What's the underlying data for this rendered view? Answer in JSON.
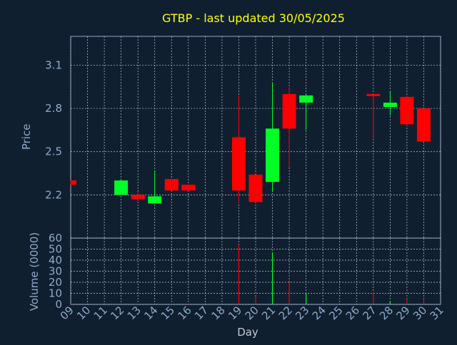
{
  "chart_data": [
    {
      "type": "candlestick",
      "title": "GTBP - last updated 30/05/2025",
      "ylabel": "Price",
      "xlabel": "",
      "ylim": [
        1.9,
        3.3
      ],
      "yticks": [
        "2.2",
        "2.5",
        "2.8",
        "3.1"
      ],
      "grid": true,
      "colors": {
        "up": "#00ff26",
        "down": "#ff0000",
        "title": "#ffff00",
        "axis_text": "#8fa8c8",
        "grid": "#c0c8d0",
        "background": "#0f1f30"
      },
      "x": [
        "09",
        "12",
        "13",
        "14",
        "15",
        "16",
        "19",
        "20",
        "21",
        "22",
        "23",
        "27",
        "28",
        "29",
        "30"
      ],
      "candles": [
        {
          "day": "09",
          "open": 2.3,
          "high": 2.3,
          "low": 2.27,
          "close": 2.27
        },
        {
          "day": "12",
          "open": 2.2,
          "high": 2.3,
          "low": 2.2,
          "close": 2.3
        },
        {
          "day": "13",
          "open": 2.2,
          "high": 2.22,
          "low": 2.15,
          "close": 2.17
        },
        {
          "day": "14",
          "open": 2.14,
          "high": 2.37,
          "low": 2.14,
          "close": 2.19
        },
        {
          "day": "15",
          "open": 2.31,
          "high": 2.31,
          "low": 2.23,
          "close": 2.23
        },
        {
          "day": "16",
          "open": 2.27,
          "high": 2.27,
          "low": 2.23,
          "close": 2.23
        },
        {
          "day": "19",
          "open": 2.6,
          "high": 2.89,
          "low": 2.14,
          "close": 2.23
        },
        {
          "day": "20",
          "open": 2.34,
          "high": 2.34,
          "low": 2.15,
          "close": 2.15
        },
        {
          "day": "21",
          "open": 2.29,
          "high": 2.98,
          "low": 2.22,
          "close": 2.66
        },
        {
          "day": "22",
          "open": 2.9,
          "high": 2.94,
          "low": 2.39,
          "close": 2.66
        },
        {
          "day": "23",
          "open": 2.84,
          "high": 2.9,
          "low": 2.65,
          "close": 2.89
        },
        {
          "day": "27",
          "open": 2.9,
          "high": 2.9,
          "low": 2.59,
          "close": 2.89
        },
        {
          "day": "28",
          "open": 2.81,
          "high": 2.92,
          "low": 2.75,
          "close": 2.84
        },
        {
          "day": "29",
          "open": 2.88,
          "high": 2.89,
          "low": 2.68,
          "close": 2.69
        },
        {
          "day": "30",
          "open": 2.8,
          "high": 2.8,
          "low": 2.57,
          "close": 2.57
        }
      ]
    },
    {
      "type": "bar",
      "ylabel": "Volume (0000)",
      "xlabel": "Day",
      "ylim": [
        0,
        60
      ],
      "yticks": [
        "0",
        "10",
        "20",
        "30",
        "40",
        "50",
        "60"
      ],
      "xticks": [
        "09",
        "10",
        "11",
        "12",
        "13",
        "14",
        "15",
        "16",
        "17",
        "18",
        "19",
        "20",
        "21",
        "22",
        "23",
        "24",
        "25",
        "26",
        "27",
        "28",
        "29",
        "30",
        "31"
      ],
      "categories": [
        "09",
        "12",
        "13",
        "14",
        "15",
        "16",
        "19",
        "20",
        "21",
        "22",
        "23",
        "27",
        "28",
        "29",
        "30"
      ],
      "values": [
        0.5,
        0.5,
        0.5,
        0.5,
        0.5,
        0.5,
        54,
        7,
        47,
        20,
        10,
        11,
        3,
        5,
        4
      ],
      "direction": [
        "down",
        "up",
        "down",
        "up",
        "down",
        "down",
        "down",
        "down",
        "up",
        "down",
        "up",
        "down",
        "up",
        "down",
        "down"
      ]
    }
  ]
}
